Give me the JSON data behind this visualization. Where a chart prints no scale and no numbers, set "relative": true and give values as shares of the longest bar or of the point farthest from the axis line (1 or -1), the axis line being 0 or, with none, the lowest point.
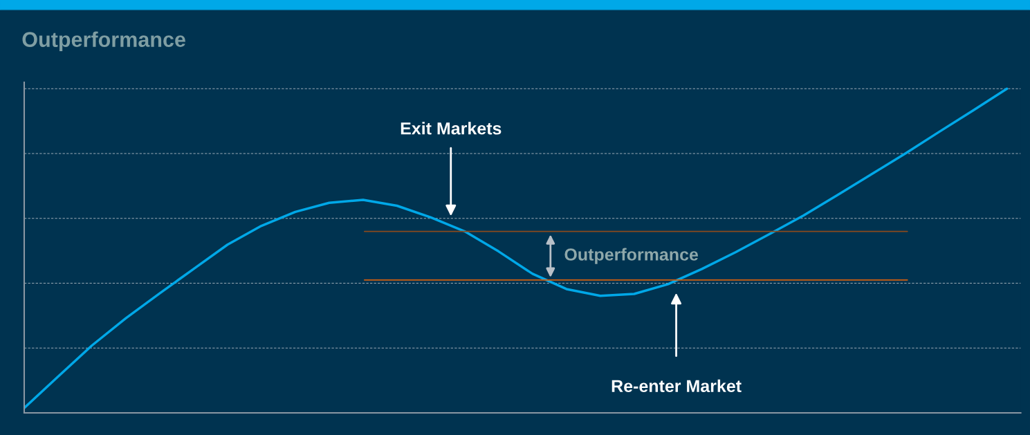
{
  "chart_data": {
    "type": "line",
    "title": "Outperformance",
    "relative": true,
    "grid": "y",
    "categories": [
      null,
      null,
      null,
      null,
      null,
      null,
      null,
      null,
      null,
      null,
      null,
      null,
      null,
      null,
      null,
      null,
      null,
      null,
      null,
      null,
      null,
      null,
      null,
      null,
      null,
      null,
      null,
      null,
      null,
      null
    ],
    "series": [
      {
        "color": "#00a8e8",
        "values": [
          0.015,
          0.112,
          0.208,
          0.292,
          0.369,
          0.444,
          0.519,
          0.577,
          0.62,
          0.648,
          0.657,
          0.639,
          0.603,
          0.56,
          0.498,
          0.429,
          0.382,
          0.361,
          0.367,
          0.397,
          0.444,
          0.496,
          0.552,
          0.609,
          0.672,
          0.736,
          0.8,
          0.867,
          0.933,
          1.0
        ]
      }
    ],
    "ref_lines": [
      {
        "axis": "y",
        "value": 0.56,
        "color": "#8b4a1c"
      },
      {
        "axis": "y",
        "value": 0.41,
        "color": "#d2600f"
      }
    ],
    "annotations": [
      "Exit Markets",
      "Outperformance",
      "Re-enter Market"
    ],
    "tick_labels": false
  }
}
